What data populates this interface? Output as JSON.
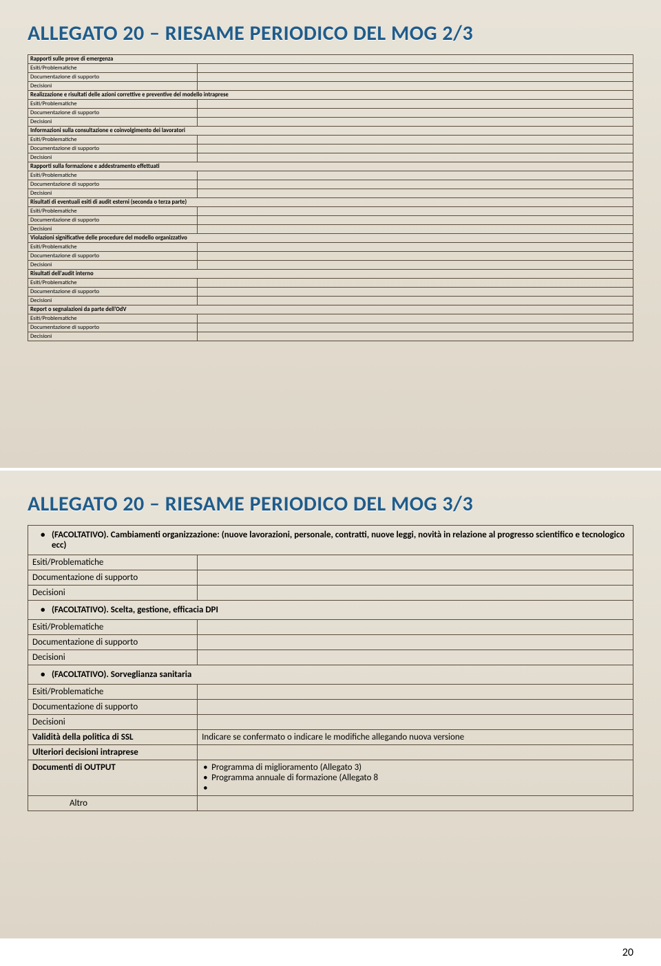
{
  "slide1": {
    "title": "ALLEGATO 20 – RIESAME PERIODICO DEL MOG 2/3",
    "sections": [
      {
        "header": "Rapporti sulle prove di emergenza",
        "rows": [
          "Esiti/Problematiche",
          "Documentazione di supporto",
          "Decisioni"
        ]
      },
      {
        "header": "Realizzazione e risultati delle azioni correttive e preventive del modello intraprese",
        "rows": [
          "Esiti/Problematiche",
          "Documentazione di supporto",
          "Decisioni"
        ]
      },
      {
        "header": "Informazioni sulla consultazione e coinvolgimento dei lavoratori",
        "rows": [
          "Esiti/Problematiche",
          "Documentazione di supporto",
          "Decisioni"
        ]
      },
      {
        "header": "Rapporti sulla formazione e addestramento effettuati",
        "rows": [
          "Esiti/Problematiche",
          "Documentazione di supporto",
          "Decisioni"
        ]
      },
      {
        "header": "Risultati di eventuali esiti di audit esterni (seconda o terza parte)",
        "rows": [
          "Esiti/Problematiche",
          "Documentazione di supporto",
          "Decisioni"
        ]
      },
      {
        "header": "Violazioni significative delle procedure del modello organizzativo",
        "rows": [
          "Esiti/Problematiche",
          "Documentazione di supporto",
          "Decisioni"
        ]
      },
      {
        "header": "Risultati dell'audit interno",
        "rows": [
          "Esiti/Problematiche",
          "Documentazione di supporto",
          "Decisioni"
        ]
      },
      {
        "header": "Report o segnalazioni da parte dell'OdV",
        "rows": [
          "Esiti/Problematiche",
          "Documentazione di supporto",
          "Decisioni"
        ]
      }
    ]
  },
  "slide2": {
    "title": "ALLEGATO 20 – RIESAME PERIODICO DEL MOG 3/3",
    "b1": "(FACOLTATIVO). Cambiamenti organizzazione: (nuove lavorazioni, personale, contratti, nuove leggi, novità in relazione al progresso scientifico e tecnologico ecc)",
    "r_esiti": "Esiti/Problematiche",
    "r_doc": "Documentazione di supporto",
    "r_dec": "Decisioni",
    "b2": "(FACOLTATIVO). Scelta, gestione, efficacia DPI",
    "b3": "(FACOLTATIVO). Sorveglianza sanitaria",
    "validita": "Validità della politica di SSL",
    "validita_v": "Indicare se confermato o indicare le modifiche allegando nuova versione",
    "ulteriori": "Ulteriori decisioni intraprese",
    "docout": "Documenti di OUTPUT",
    "docout_v1": "Programma di miglioramento (Allegato 3)",
    "docout_v2": "Programma annuale di formazione (Allegato 8",
    "altro": "Altro"
  },
  "page_number": "20"
}
